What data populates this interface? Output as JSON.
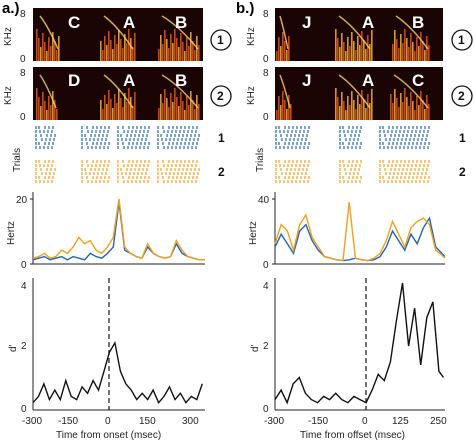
{
  "panels": [
    {
      "label": "a.)",
      "spectrograms": [
        {
          "row_marker": "1",
          "syllables": [
            "C",
            "A",
            "B"
          ],
          "ylabel": "KHz",
          "yticks": [
            "8",
            "0"
          ]
        },
        {
          "row_marker": "2",
          "syllables": [
            "D",
            "A",
            "B"
          ],
          "ylabel": "KHz",
          "yticks": [
            "8",
            "0"
          ]
        }
      ],
      "raster": {
        "ylabel": "Trials",
        "rows": [
          "1",
          "2"
        ]
      },
      "rate": {
        "ylabel": "Hertz",
        "yticks": [
          "20",
          "0"
        ]
      },
      "dprime": {
        "ylabel": "d'",
        "yticks": [
          "4",
          "2",
          "0"
        ],
        "xticks": [
          "-300",
          "-150",
          "0",
          "150",
          "300"
        ],
        "xlabel": "Time from onset (msec)"
      }
    },
    {
      "label": "b.)",
      "spectrograms": [
        {
          "row_marker": "1",
          "syllables": [
            "J",
            "A",
            "B"
          ],
          "ylabel": "KHz",
          "yticks": [
            "8",
            "0"
          ]
        },
        {
          "row_marker": "2",
          "syllables": [
            "J",
            "A",
            "C"
          ],
          "ylabel": "KHz",
          "yticks": [
            "8",
            "0"
          ]
        }
      ],
      "raster": {
        "ylabel": "Trials",
        "rows": [
          "1",
          "2"
        ]
      },
      "rate": {
        "ylabel": "Hertz",
        "yticks": [
          "40",
          "0"
        ]
      },
      "dprime": {
        "ylabel": "d'",
        "yticks": [
          "4",
          "2",
          "0"
        ],
        "xticks": [
          "-300",
          "-150",
          "0",
          "125",
          "250"
        ],
        "xlabel": "Time from offset (msec)"
      }
    }
  ],
  "chart_data": [
    {
      "type": "line",
      "title": "",
      "xlabel": "",
      "ylabel": "Hertz",
      "xlim": [
        -300,
        300
      ],
      "ylim": [
        0,
        20
      ],
      "series_colors": [
        "#2563b0",
        "#f0a020"
      ],
      "series": [
        {
          "x": [
            -300,
            -280,
            -260,
            -240,
            -220,
            -200,
            -180,
            -160,
            -140,
            -120,
            -100,
            -80,
            -60,
            -40,
            -20,
            0,
            20,
            40,
            60,
            80,
            100,
            120,
            140,
            160,
            180,
            200,
            220,
            240,
            260,
            280,
            300
          ],
          "values": [
            1,
            1.5,
            2,
            1,
            1.5,
            2,
            1,
            2,
            1.5,
            1,
            3,
            2,
            1.5,
            3,
            5,
            19,
            4,
            3,
            2,
            1.5,
            5,
            3,
            2,
            1.5,
            2,
            6,
            3,
            2,
            1.5,
            1,
            1
          ]
        },
        {
          "x": [
            -300,
            -280,
            -260,
            -240,
            -220,
            -200,
            -180,
            -160,
            -140,
            -120,
            -100,
            -80,
            -60,
            -40,
            -20,
            0,
            20,
            40,
            60,
            80,
            100,
            120,
            140,
            160,
            180,
            200,
            220,
            240,
            260,
            280,
            300
          ],
          "values": [
            1.5,
            2,
            3,
            1.5,
            2,
            4,
            3,
            5,
            8,
            6,
            7,
            4,
            3,
            5,
            8,
            20,
            5,
            3,
            2,
            1.5,
            6,
            3,
            2,
            1.5,
            2,
            7,
            4,
            2,
            1.5,
            1,
            1
          ]
        }
      ]
    },
    {
      "type": "line",
      "title": "",
      "xlabel": "",
      "ylabel": "Hertz",
      "xlim": [
        -300,
        250
      ],
      "ylim": [
        0,
        40
      ],
      "series_colors": [
        "#2563b0",
        "#f0a020"
      ],
      "series": [
        {
          "x": [
            -300,
            -280,
            -260,
            -240,
            -220,
            -200,
            -180,
            -160,
            -140,
            -120,
            -100,
            -80,
            -60,
            -40,
            -20,
            0,
            20,
            40,
            60,
            80,
            100,
            120,
            140,
            160,
            180,
            200,
            220,
            240,
            250
          ],
          "values": [
            10,
            18,
            12,
            6,
            20,
            24,
            14,
            8,
            4,
            3,
            2,
            1.5,
            2,
            3,
            2,
            1.5,
            2,
            4,
            10,
            20,
            14,
            8,
            18,
            12,
            22,
            28,
            10,
            6,
            4
          ]
        },
        {
          "x": [
            -300,
            -280,
            -260,
            -240,
            -220,
            -200,
            -180,
            -160,
            -140,
            -120,
            -100,
            -80,
            -60,
            -40,
            -20,
            0,
            20,
            40,
            60,
            80,
            100,
            120,
            140,
            160,
            180,
            200,
            220,
            240,
            250
          ],
          "values": [
            12,
            24,
            20,
            8,
            24,
            30,
            16,
            10,
            4,
            3,
            2,
            1.5,
            38,
            3,
            2,
            1.5,
            3,
            6,
            14,
            26,
            18,
            10,
            22,
            26,
            28,
            24,
            8,
            5,
            3
          ]
        }
      ]
    },
    {
      "type": "line",
      "title": "",
      "xlabel": "Time from onset (msec)",
      "ylabel": "d'",
      "xlim": [
        -300,
        330
      ],
      "ylim": [
        0,
        4
      ],
      "series": [
        {
          "x": [
            -300,
            -280,
            -260,
            -240,
            -220,
            -200,
            -180,
            -160,
            -140,
            -120,
            -100,
            -80,
            -60,
            -40,
            -20,
            0,
            20,
            40,
            60,
            80,
            100,
            120,
            140,
            160,
            180,
            200,
            220,
            240,
            260,
            280,
            300,
            320
          ],
          "values": [
            0.2,
            0.4,
            0.8,
            0.3,
            0.6,
            0.3,
            0.9,
            0.4,
            0.3,
            0.7,
            0.5,
            0.9,
            0.6,
            1.2,
            1.8,
            2.1,
            1.2,
            0.8,
            0.6,
            0.3,
            0.5,
            0.3,
            0.6,
            0.2,
            0.4,
            0.7,
            0.3,
            0.5,
            0.2,
            0.4,
            0.3,
            0.8
          ]
        }
      ]
    },
    {
      "type": "line",
      "title": "",
      "xlabel": "Time from offset (msec)",
      "ylabel": "d'",
      "xlim": [
        -300,
        260
      ],
      "ylim": [
        0,
        4
      ],
      "series": [
        {
          "x": [
            -300,
            -280,
            -260,
            -240,
            -220,
            -200,
            -180,
            -160,
            -140,
            -120,
            -100,
            -80,
            -60,
            -40,
            -20,
            0,
            20,
            40,
            60,
            80,
            100,
            120,
            140,
            160,
            180,
            200,
            220,
            240,
            255
          ],
          "values": [
            0.3,
            0.6,
            0.2,
            0.8,
            1.0,
            0.5,
            0.3,
            0.2,
            0.4,
            0.3,
            0.5,
            0.3,
            0.2,
            0.4,
            0.3,
            0.2,
            0.6,
            1.1,
            0.9,
            1.5,
            2.8,
            4.0,
            2.0,
            3.2,
            1.4,
            2.9,
            3.4,
            1.2,
            1.0
          ]
        }
      ]
    }
  ]
}
